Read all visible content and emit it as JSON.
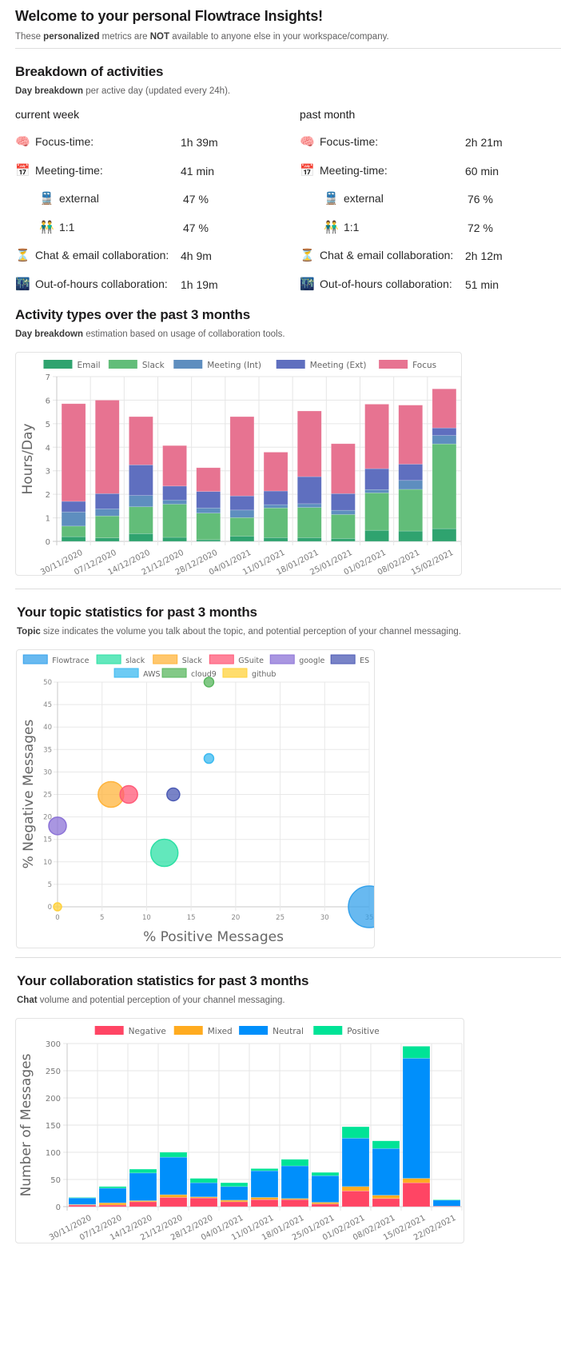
{
  "header": {
    "title": "Welcome to your personal Flowtrace Insights!",
    "subtitle_pre": "These ",
    "subtitle_bold1": "personalized",
    "subtitle_mid": " metrics are ",
    "subtitle_bold2": "NOT",
    "subtitle_post": " available to anyone else in your workspace/company."
  },
  "breakdown": {
    "title": "Breakdown of activities",
    "subtitle_bold": "Day breakdown",
    "subtitle_rest": " per active day (updated every 24h).",
    "columns": [
      {
        "title": "current week",
        "rows": [
          {
            "icon": "brain-icon",
            "glyph": "🧠",
            "label": "Focus-time:",
            "value": "1h 39m",
            "indent": false
          },
          {
            "icon": "calendar-icon",
            "glyph": "📅",
            "label": "Meeting-time:",
            "value": "41 min",
            "indent": false
          },
          {
            "icon": "train-icon",
            "glyph": "🚆",
            "label": "external",
            "value": "47 %",
            "indent": true
          },
          {
            "icon": "people-icon",
            "glyph": "👬",
            "label": "1:1",
            "value": "47 %",
            "indent": true
          },
          {
            "icon": "hourglass-icon",
            "glyph": "⏳",
            "label": "Chat & email collaboration:",
            "value": "4h 9m",
            "indent": false
          },
          {
            "icon": "night-city-icon",
            "glyph": "🌃",
            "label": "Out-of-hours collaboration:",
            "value": "1h 19m",
            "indent": false
          }
        ]
      },
      {
        "title": "past month",
        "rows": [
          {
            "icon": "brain-icon",
            "glyph": "🧠",
            "label": "Focus-time:",
            "value": "2h 21m",
            "indent": false
          },
          {
            "icon": "calendar-icon",
            "glyph": "📅",
            "label": "Meeting-time:",
            "value": "60 min",
            "indent": false
          },
          {
            "icon": "train-icon",
            "glyph": "🚆",
            "label": "external",
            "value": "76 %",
            "indent": true
          },
          {
            "icon": "people-icon",
            "glyph": "👬",
            "label": "1:1",
            "value": "72 %",
            "indent": true
          },
          {
            "icon": "hourglass-icon",
            "glyph": "⏳",
            "label": "Chat & email collaboration:",
            "value": "2h 12m",
            "indent": false
          },
          {
            "icon": "night-city-icon",
            "glyph": "🌃",
            "label": "Out-of-hours collaboration:",
            "value": "51 min",
            "indent": false
          }
        ]
      }
    ]
  },
  "activity": {
    "title": "Activity types over the past 3 months",
    "subtitle_bold": "Day breakdown",
    "subtitle_rest": " estimation based on usage of collaboration tools."
  },
  "topics": {
    "title": "Your topic statistics for past 3 months",
    "subtitle_bold": "Topic",
    "subtitle_rest": " size indicates the volume you talk about the topic, and potential perception of your channel messaging."
  },
  "collab": {
    "title": "Your collaboration statistics for past 3 months",
    "subtitle_bold": "Chat",
    "subtitle_rest": " volume and potential perception of your channel messaging."
  },
  "chart_data": [
    {
      "type": "bar",
      "stacked": true,
      "title": "",
      "xlabel": "",
      "ylabel": "Hours/Day",
      "ylim": [
        0,
        7
      ],
      "yticks": [
        0,
        1,
        2,
        3,
        4,
        5,
        6,
        7
      ],
      "grid": true,
      "legend": "top",
      "categories": [
        "30/11/2020",
        "07/12/2020",
        "14/12/2020",
        "21/12/2020",
        "28/12/2020",
        "04/01/2021",
        "11/01/2021",
        "18/01/2021",
        "25/01/2021",
        "01/02/2021",
        "08/02/2021",
        "15/02/2021"
      ],
      "series": [
        {
          "name": "Email",
          "color": "#2fa36f",
          "values": [
            0.2,
            0.15,
            0.33,
            0.17,
            0.07,
            0.22,
            0.16,
            0.16,
            0.12,
            0.47,
            0.44,
            0.54
          ]
        },
        {
          "name": "Slack",
          "color": "#62bd79",
          "values": [
            0.45,
            0.93,
            1.14,
            1.41,
            1.13,
            0.79,
            1.26,
            1.28,
            1.02,
            1.59,
            1.77,
            3.6
          ]
        },
        {
          "name": "Meeting (Int)",
          "color": "#5e8ebf",
          "values": [
            0.6,
            0.3,
            0.48,
            0.17,
            0.22,
            0.32,
            0.14,
            0.16,
            0.18,
            0.14,
            0.38,
            0.36
          ]
        },
        {
          "name": "Meeting (Ext)",
          "color": "#5f6fbf",
          "values": [
            0.45,
            0.65,
            1.3,
            0.6,
            0.7,
            0.6,
            0.58,
            1.15,
            0.71,
            0.89,
            0.69,
            0.32
          ]
        },
        {
          "name": "Focus",
          "color": "#e77391",
          "values": [
            4.15,
            3.97,
            2.05,
            1.72,
            1.01,
            3.37,
            1.65,
            2.79,
            2.12,
            2.74,
            2.51,
            1.66
          ]
        }
      ]
    },
    {
      "type": "scatter",
      "subtype": "bubble",
      "title": "",
      "xlabel": "% Positive Messages",
      "ylabel": "% Negative Messages",
      "xlim": [
        0,
        35
      ],
      "ylim": [
        0,
        50
      ],
      "xticks": [
        0,
        5,
        10,
        15,
        20,
        25,
        30,
        35
      ],
      "yticks": [
        0,
        5,
        10,
        15,
        20,
        25,
        30,
        35,
        40,
        45,
        50
      ],
      "grid": true,
      "legend": "top",
      "series": [
        {
          "name": "Flowtrace",
          "x": 35,
          "y": 0,
          "r": 26,
          "color": "#36a2eb"
        },
        {
          "name": "slack",
          "x": 12,
          "y": 12,
          "r": 17,
          "color": "#2de0a5"
        },
        {
          "name": "Slack",
          "x": 6,
          "y": 25,
          "r": 16,
          "color": "#ffb43c"
        },
        {
          "name": "GSuite",
          "x": 8,
          "y": 25,
          "r": 11,
          "color": "#ff5a78"
        },
        {
          "name": "google",
          "x": 0,
          "y": 18,
          "r": 11,
          "color": "#8c73d7"
        },
        {
          "name": "ES",
          "x": 13,
          "y": 25,
          "r": 8,
          "color": "#4b5ab4"
        },
        {
          "name": "AWS",
          "x": 17,
          "y": 33,
          "r": 6,
          "color": "#3cbaf0"
        },
        {
          "name": "cloud9",
          "x": 17,
          "y": 50,
          "r": 6,
          "color": "#5ab75f"
        },
        {
          "name": "github",
          "x": 0,
          "y": 0,
          "r": 5,
          "color": "#ffd23c"
        }
      ]
    },
    {
      "type": "bar",
      "stacked": true,
      "title": "",
      "xlabel": "",
      "ylabel": "Number of Messages",
      "ylim": [
        0,
        300
      ],
      "yticks": [
        0,
        50,
        100,
        150,
        200,
        250,
        300
      ],
      "grid": true,
      "legend": "top",
      "categories": [
        "30/11/2020",
        "07/12/2020",
        "14/12/2020",
        "21/12/2020",
        "28/12/2020",
        "04/01/2021",
        "11/01/2021",
        "18/01/2021",
        "25/01/2021",
        "01/02/2021",
        "08/02/2021",
        "15/02/2021",
        "22/02/2021"
      ],
      "series": [
        {
          "name": "Negative",
          "color": "#ff4564",
          "values": [
            3,
            3,
            9,
            17,
            16,
            9,
            13,
            13,
            5,
            29,
            15,
            44,
            1
          ]
        },
        {
          "name": "Mixed",
          "color": "#ffab1f",
          "values": [
            1,
            4,
            2,
            5,
            2,
            3,
            4,
            2,
            3,
            8,
            6,
            8,
            0
          ]
        },
        {
          "name": "Neutral",
          "color": "#008ffb",
          "values": [
            12,
            27,
            51,
            69,
            26,
            25,
            49,
            60,
            49,
            89,
            86,
            221,
            11
          ]
        },
        {
          "name": "Positive",
          "color": "#00e396",
          "values": [
            1,
            3,
            7,
            9,
            8,
            7,
            4,
            12,
            6,
            21,
            14,
            22,
            1
          ]
        }
      ]
    }
  ]
}
